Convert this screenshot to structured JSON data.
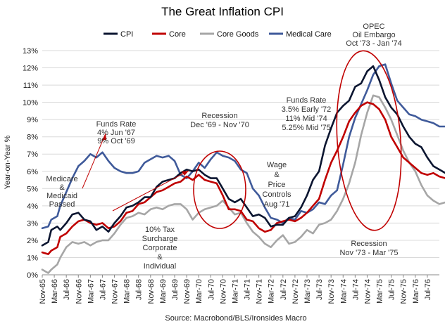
{
  "chart_data": {
    "type": "line",
    "title": "The Great Inflation CPI",
    "ylabel": "Year-on-Year %",
    "xlabel": "",
    "source": "Source: Macrobond/BLS/Ironsides Macro",
    "ylim": [
      0,
      13
    ],
    "yticks": [
      "0%",
      "1%",
      "2%",
      "3%",
      "4%",
      "5%",
      "6%",
      "7%",
      "8%",
      "9%",
      "10%",
      "11%",
      "12%",
      "13%"
    ],
    "xticks": [
      "Nov-65",
      "Mar-66",
      "Jul-66",
      "Nov-66",
      "Mar-67",
      "Jul-67",
      "Nov-67",
      "Mar-68",
      "Jul-68",
      "Nov-68",
      "Mar-69",
      "Jul-69",
      "Nov-69",
      "Mar-70",
      "Jul-70",
      "Nov-70",
      "Mar-71",
      "Jul-71",
      "Nov-71",
      "Mar-72",
      "Jul-72",
      "Nov-72",
      "Mar-73",
      "Jul-73",
      "Nov-73",
      "Mar-74",
      "Jul-74",
      "Nov-74",
      "Mar-75",
      "Jul-75",
      "Nov-75",
      "Mar-76",
      "Jul-76"
    ],
    "x_start": "Nov-65",
    "x_end": "Nov-76",
    "legend_position": "top",
    "grid": true,
    "series": [
      {
        "name": "CPI",
        "color": "#0b1530",
        "points": [
          [
            0,
            1.7
          ],
          [
            2,
            1.9
          ],
          [
            3,
            2.6
          ],
          [
            5,
            2.8
          ],
          [
            6,
            2.6
          ],
          [
            8,
            3.0
          ],
          [
            10,
            3.5
          ],
          [
            12,
            3.6
          ],
          [
            14,
            3.2
          ],
          [
            16,
            3.1
          ],
          [
            18,
            2.6
          ],
          [
            20,
            2.8
          ],
          [
            22,
            2.5
          ],
          [
            24,
            3.0
          ],
          [
            26,
            3.4
          ],
          [
            28,
            3.9
          ],
          [
            30,
            4.0
          ],
          [
            32,
            4.2
          ],
          [
            34,
            4.5
          ],
          [
            36,
            4.5
          ],
          [
            38,
            5.1
          ],
          [
            40,
            5.4
          ],
          [
            42,
            5.5
          ],
          [
            44,
            5.6
          ],
          [
            46,
            5.9
          ],
          [
            48,
            6.1
          ],
          [
            50,
            6.0
          ],
          [
            52,
            6.1
          ],
          [
            54,
            5.8
          ],
          [
            56,
            5.6
          ],
          [
            58,
            5.6
          ],
          [
            60,
            5.0
          ],
          [
            62,
            4.4
          ],
          [
            64,
            4.2
          ],
          [
            66,
            4.4
          ],
          [
            68,
            3.9
          ],
          [
            70,
            3.4
          ],
          [
            72,
            3.5
          ],
          [
            74,
            3.3
          ],
          [
            76,
            2.8
          ],
          [
            78,
            2.9
          ],
          [
            80,
            2.9
          ],
          [
            82,
            3.3
          ],
          [
            84,
            3.4
          ],
          [
            86,
            3.9
          ],
          [
            88,
            4.6
          ],
          [
            90,
            5.5
          ],
          [
            92,
            6.0
          ],
          [
            94,
            7.5
          ],
          [
            96,
            8.5
          ],
          [
            98,
            9.4
          ],
          [
            100,
            9.8
          ],
          [
            102,
            10.1
          ],
          [
            104,
            10.9
          ],
          [
            106,
            11.1
          ],
          [
            108,
            11.8
          ],
          [
            110,
            12.1
          ],
          [
            112,
            11.3
          ],
          [
            114,
            10.3
          ],
          [
            116,
            9.7
          ],
          [
            118,
            9.3
          ],
          [
            120,
            8.6
          ],
          [
            122,
            8.0
          ],
          [
            124,
            7.6
          ],
          [
            126,
            7.4
          ],
          [
            128,
            6.8
          ],
          [
            130,
            6.3
          ],
          [
            132,
            6.1
          ],
          [
            134,
            5.9
          ],
          [
            136,
            5.7
          ],
          [
            138,
            5.5
          ],
          [
            140,
            5.4
          ],
          [
            142,
            5.3
          ],
          [
            144,
            5.4
          ],
          [
            146,
            5.2
          ]
        ]
      },
      {
        "name": "Core",
        "color": "#c00000",
        "points": [
          [
            0,
            1.3
          ],
          [
            2,
            1.2
          ],
          [
            3,
            1.4
          ],
          [
            5,
            1.6
          ],
          [
            6,
            2.2
          ],
          [
            8,
            2.4
          ],
          [
            10,
            2.8
          ],
          [
            12,
            3.1
          ],
          [
            14,
            3.2
          ],
          [
            16,
            3.0
          ],
          [
            18,
            2.9
          ],
          [
            20,
            3.0
          ],
          [
            22,
            2.7
          ],
          [
            24,
            2.8
          ],
          [
            26,
            3.1
          ],
          [
            28,
            3.6
          ],
          [
            30,
            3.7
          ],
          [
            32,
            4.1
          ],
          [
            34,
            4.2
          ],
          [
            36,
            4.5
          ],
          [
            38,
            4.8
          ],
          [
            40,
            4.9
          ],
          [
            42,
            5.1
          ],
          [
            44,
            5.3
          ],
          [
            46,
            5.4
          ],
          [
            48,
            5.7
          ],
          [
            50,
            5.5
          ],
          [
            52,
            5.8
          ],
          [
            54,
            5.5
          ],
          [
            56,
            5.4
          ],
          [
            58,
            5.3
          ],
          [
            60,
            4.6
          ],
          [
            62,
            3.8
          ],
          [
            64,
            3.8
          ],
          [
            66,
            3.7
          ],
          [
            68,
            3.2
          ],
          [
            70,
            3.1
          ],
          [
            72,
            2.7
          ],
          [
            74,
            2.5
          ],
          [
            76,
            2.6
          ],
          [
            78,
            3.0
          ],
          [
            80,
            3.1
          ],
          [
            82,
            3.2
          ],
          [
            84,
            3.1
          ],
          [
            86,
            3.3
          ],
          [
            88,
            3.6
          ],
          [
            90,
            4.0
          ],
          [
            92,
            4.4
          ],
          [
            94,
            5.5
          ],
          [
            96,
            6.5
          ],
          [
            98,
            7.2
          ],
          [
            100,
            8.0
          ],
          [
            102,
            8.9
          ],
          [
            104,
            9.4
          ],
          [
            106,
            9.8
          ],
          [
            108,
            10.0
          ],
          [
            110,
            9.9
          ],
          [
            112,
            9.6
          ],
          [
            114,
            9.0
          ],
          [
            116,
            8.0
          ],
          [
            118,
            7.4
          ],
          [
            120,
            6.8
          ],
          [
            122,
            6.5
          ],
          [
            124,
            6.2
          ],
          [
            126,
            5.9
          ],
          [
            128,
            5.8
          ],
          [
            130,
            5.9
          ],
          [
            132,
            5.7
          ],
          [
            134,
            5.6
          ],
          [
            136,
            6.0
          ],
          [
            138,
            5.9
          ],
          [
            140,
            5.8
          ],
          [
            142,
            5.9
          ],
          [
            144,
            5.9
          ],
          [
            146,
            5.6
          ]
        ]
      },
      {
        "name": "Core Goods",
        "color": "#a6a6a6",
        "points": [
          [
            0,
            0.3
          ],
          [
            2,
            0.1
          ],
          [
            3,
            0.3
          ],
          [
            5,
            0.6
          ],
          [
            6,
            1.0
          ],
          [
            8,
            1.6
          ],
          [
            10,
            1.9
          ],
          [
            12,
            1.8
          ],
          [
            14,
            1.9
          ],
          [
            16,
            1.7
          ],
          [
            18,
            1.9
          ],
          [
            20,
            2.0
          ],
          [
            22,
            2.0
          ],
          [
            24,
            2.4
          ],
          [
            26,
            2.9
          ],
          [
            28,
            3.3
          ],
          [
            30,
            3.4
          ],
          [
            32,
            3.6
          ],
          [
            34,
            3.5
          ],
          [
            36,
            3.8
          ],
          [
            38,
            3.9
          ],
          [
            40,
            3.8
          ],
          [
            42,
            4.0
          ],
          [
            44,
            4.1
          ],
          [
            46,
            4.1
          ],
          [
            48,
            3.8
          ],
          [
            50,
            3.2
          ],
          [
            52,
            3.6
          ],
          [
            54,
            3.8
          ],
          [
            56,
            3.9
          ],
          [
            58,
            4.0
          ],
          [
            60,
            4.3
          ],
          [
            62,
            3.9
          ],
          [
            64,
            3.5
          ],
          [
            66,
            3.6
          ],
          [
            68,
            3.0
          ],
          [
            70,
            2.5
          ],
          [
            72,
            2.2
          ],
          [
            74,
            1.8
          ],
          [
            76,
            1.6
          ],
          [
            78,
            2.0
          ],
          [
            80,
            2.3
          ],
          [
            82,
            1.8
          ],
          [
            84,
            1.9
          ],
          [
            86,
            2.2
          ],
          [
            88,
            2.6
          ],
          [
            90,
            2.4
          ],
          [
            92,
            2.9
          ],
          [
            94,
            3.0
          ],
          [
            96,
            3.2
          ],
          [
            98,
            3.7
          ],
          [
            100,
            4.4
          ],
          [
            102,
            5.3
          ],
          [
            104,
            6.5
          ],
          [
            106,
            8.1
          ],
          [
            108,
            9.4
          ],
          [
            110,
            10.4
          ],
          [
            112,
            10.3
          ],
          [
            114,
            9.7
          ],
          [
            116,
            9.0
          ],
          [
            118,
            8.1
          ],
          [
            120,
            7.2
          ],
          [
            122,
            6.5
          ],
          [
            124,
            6.0
          ],
          [
            126,
            5.2
          ],
          [
            128,
            4.6
          ],
          [
            130,
            4.3
          ],
          [
            132,
            4.1
          ],
          [
            134,
            4.2
          ],
          [
            136,
            4.5
          ],
          [
            138,
            4.4
          ],
          [
            140,
            4.6
          ],
          [
            142,
            4.5
          ],
          [
            144,
            4.6
          ],
          [
            146,
            4.7
          ]
        ]
      },
      {
        "name": "Medical Care",
        "color": "#3f5a9a",
        "points": [
          [
            0,
            2.7
          ],
          [
            2,
            2.8
          ],
          [
            3,
            3.2
          ],
          [
            5,
            3.4
          ],
          [
            6,
            4.0
          ],
          [
            8,
            4.8
          ],
          [
            10,
            5.6
          ],
          [
            12,
            6.3
          ],
          [
            14,
            6.6
          ],
          [
            16,
            7.0
          ],
          [
            18,
            6.8
          ],
          [
            20,
            7.1
          ],
          [
            22,
            6.6
          ],
          [
            24,
            6.2
          ],
          [
            26,
            6.0
          ],
          [
            28,
            5.9
          ],
          [
            30,
            5.9
          ],
          [
            32,
            6.0
          ],
          [
            34,
            6.5
          ],
          [
            36,
            6.7
          ],
          [
            38,
            6.9
          ],
          [
            40,
            6.8
          ],
          [
            42,
            6.9
          ],
          [
            44,
            6.6
          ],
          [
            46,
            5.8
          ],
          [
            48,
            5.6
          ],
          [
            50,
            6.0
          ],
          [
            52,
            6.5
          ],
          [
            54,
            6.2
          ],
          [
            56,
            6.7
          ],
          [
            58,
            7.1
          ],
          [
            60,
            6.9
          ],
          [
            62,
            6.8
          ],
          [
            64,
            6.6
          ],
          [
            66,
            6.1
          ],
          [
            68,
            5.9
          ],
          [
            70,
            5.0
          ],
          [
            72,
            4.6
          ],
          [
            74,
            3.9
          ],
          [
            76,
            3.3
          ],
          [
            78,
            3.2
          ],
          [
            80,
            3.0
          ],
          [
            82,
            3.3
          ],
          [
            84,
            3.2
          ],
          [
            86,
            3.7
          ],
          [
            88,
            3.6
          ],
          [
            90,
            3.8
          ],
          [
            92,
            4.2
          ],
          [
            94,
            4.1
          ],
          [
            96,
            4.6
          ],
          [
            98,
            4.9
          ],
          [
            100,
            6.4
          ],
          [
            102,
            8.0
          ],
          [
            104,
            9.1
          ],
          [
            106,
            9.9
          ],
          [
            108,
            10.7
          ],
          [
            110,
            11.6
          ],
          [
            112,
            12.1
          ],
          [
            114,
            12.2
          ],
          [
            116,
            11.1
          ],
          [
            118,
            10.1
          ],
          [
            120,
            9.7
          ],
          [
            122,
            9.3
          ],
          [
            124,
            9.2
          ],
          [
            126,
            9.0
          ],
          [
            128,
            8.9
          ],
          [
            130,
            8.8
          ],
          [
            132,
            8.6
          ],
          [
            134,
            8.6
          ],
          [
            136,
            8.5
          ],
          [
            138,
            8.6
          ],
          [
            140,
            8.6
          ],
          [
            142,
            8.5
          ],
          [
            144,
            8.4
          ],
          [
            146,
            8.1
          ]
        ]
      }
    ],
    "annotations": [
      {
        "lines": [
          "Funds Rate",
          "4% Jun '67",
          "9% Oct '69"
        ]
      },
      {
        "lines": [
          "Medicare",
          "&",
          "Medicaid",
          "Passed"
        ]
      },
      {
        "lines": [
          "Recession",
          "Dec '69 - Nov '70"
        ]
      },
      {
        "lines": [
          "Wage",
          "&",
          "Price",
          "Controls",
          "Aug '71"
        ]
      },
      {
        "lines": [
          "Funds Rate",
          "3.5% Early '72",
          "11% Mid '74",
          "5.25% Mid '75"
        ]
      },
      {
        "lines": [
          "OPEC",
          "Oil Embargo",
          "Oct '73 - Jan '74"
        ]
      },
      {
        "lines": [
          "10% Tax",
          "Surcharge",
          "Corporate",
          "&",
          "Individual"
        ]
      },
      {
        "lines": [
          "Recession",
          "Nov '73 - Mar '75"
        ]
      }
    ]
  }
}
